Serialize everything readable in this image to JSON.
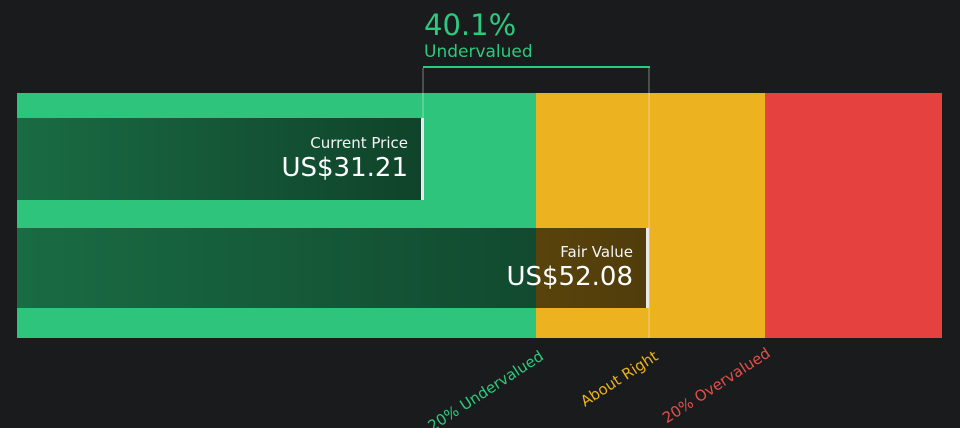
{
  "colors": {
    "background": "#1a1b1c",
    "zone_green": "#2ec47c",
    "zone_yellow": "#ecb220",
    "zone_red": "#e4413f",
    "accent_green_text": "#2dc97e",
    "about_right_text": "#eab21d",
    "overvalued_text": "#e2504a",
    "bar_border": "#e8e8e8"
  },
  "chart_data": {
    "type": "bar",
    "orientation": "horizontal",
    "subtype": "share-price-vs-fair-value-gauge",
    "annotation": {
      "percent": "40.1%",
      "label": "Undervalued"
    },
    "series": [
      {
        "name": "Current Price",
        "display_value": "US$31.21",
        "value": 31.21
      },
      {
        "name": "Fair Value",
        "display_value": "US$52.08",
        "value": 52.08
      }
    ],
    "zones": [
      {
        "label": "20% Undervalued",
        "color": "#2ec47c"
      },
      {
        "label": "About Right",
        "color": "#ecb220"
      },
      {
        "label": "20% Overvalued",
        "color": "#e4413f"
      }
    ],
    "legend_position": "none",
    "grid": false
  }
}
